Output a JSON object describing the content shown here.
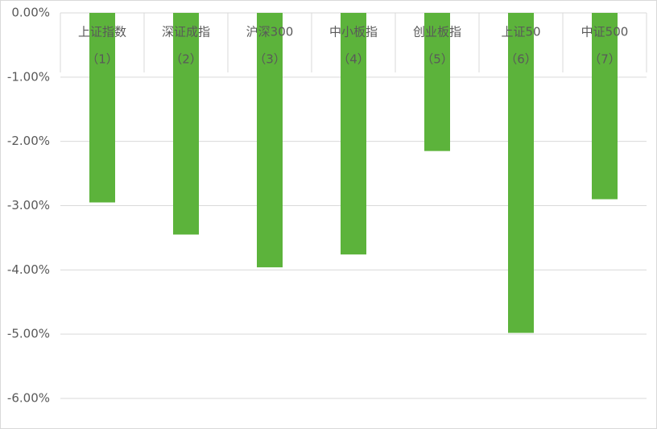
{
  "chart_data": {
    "type": "bar",
    "categories": [
      [
        "上证指数",
        "（1）"
      ],
      [
        "深证成指",
        "（2）"
      ],
      [
        "沪深300",
        "（3）"
      ],
      [
        "中小板指",
        "（4）"
      ],
      [
        "创业板指",
        "（5）"
      ],
      [
        "上证50",
        "（6）"
      ],
      [
        "中证500",
        "（7）"
      ]
    ],
    "values": [
      -2.95,
      -3.45,
      -3.96,
      -3.76,
      -2.15,
      -4.98,
      -2.9
    ],
    "color": "#5cb33b",
    "ylim": [
      -6,
      0
    ],
    "yticks": [
      {
        "value": 0,
        "label": "0.00%"
      },
      {
        "value": -1,
        "label": "-1.00%"
      },
      {
        "value": -2,
        "label": "-2.00%"
      },
      {
        "value": -3,
        "label": "-3.00%"
      },
      {
        "value": -4,
        "label": "-4.00%"
      },
      {
        "value": -5,
        "label": "-5.00%"
      },
      {
        "value": -6,
        "label": "-6.00%"
      }
    ],
    "grid": true
  }
}
